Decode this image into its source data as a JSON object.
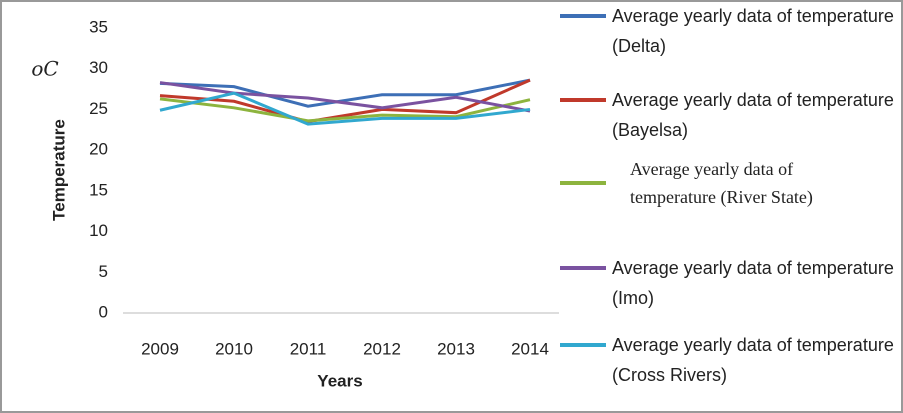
{
  "chart_data": {
    "type": "line",
    "x_label": "Years",
    "y_label": "Temperature",
    "y_unit": "oC",
    "categories": [
      "2009",
      "2010",
      "2011",
      "2012",
      "2013",
      "2014"
    ],
    "series": [
      {
        "name": "Average yearly data  of temperature (Delta)",
        "color": "#3d6fb6",
        "values": [
          28.2,
          27.8,
          25.4,
          26.8,
          26.8,
          28.6
        ]
      },
      {
        "name": "Average yearly data of temperature (Bayelsa)",
        "color": "#c0392b",
        "values": [
          26.7,
          26.0,
          23.5,
          25.0,
          24.6,
          28.6
        ]
      },
      {
        "name": "Average yearly data of temperature (River State)",
        "color": "#8db43e",
        "values": [
          26.3,
          25.2,
          23.6,
          24.3,
          24.1,
          26.2
        ]
      },
      {
        "name": "Average yearly data of temperature (Imo)",
        "color": "#7a52a0",
        "values": [
          28.3,
          27.0,
          26.4,
          25.2,
          26.5,
          24.8
        ]
      },
      {
        "name": "Average yearly data  of temperature (Cross Rivers)",
        "color": "#31a8cf",
        "values": [
          24.9,
          27.0,
          23.2,
          23.9,
          23.9,
          25.0
        ]
      }
    ],
    "ylim": [
      0,
      35
    ],
    "yticks": [
      0,
      5,
      10,
      15,
      20,
      25,
      30,
      35
    ],
    "grid": false
  }
}
